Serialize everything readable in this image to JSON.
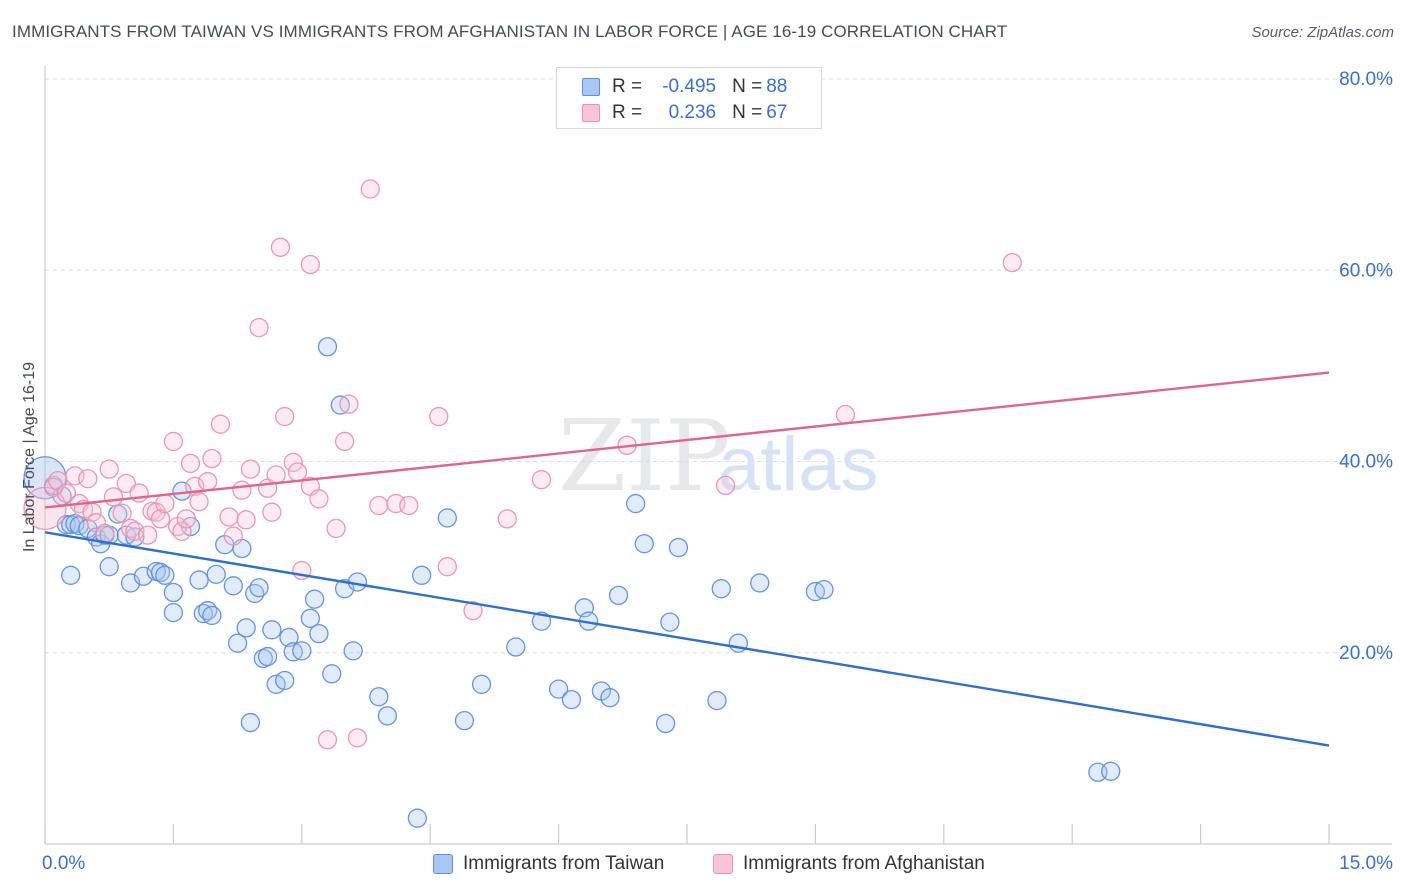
{
  "title": "IMMIGRANTS FROM TAIWAN VS IMMIGRANTS FROM AFGHANISTAN IN LABOR FORCE | AGE 16-19 CORRELATION CHART",
  "source": "Source: ZipAtlas.com",
  "colors": {
    "blue": "#5b8fe0",
    "blue_fill": "#aac6f2",
    "blue_line": "#2f6fd0",
    "pink": "#ee8fb0",
    "pink_fill": "#f7c5d6",
    "pink_line": "#e0648f",
    "grid": "#dcdde2",
    "tick_label": "#3a6fd1"
  },
  "legend": {
    "taiwan": {
      "r_label": "R =",
      "r_value": "-0.495",
      "n_label": "N =",
      "n_value": "88"
    },
    "afghanistan": {
      "r_label": "R =",
      "r_value": "0.236",
      "n_label": "N =",
      "n_value": "67"
    }
  },
  "bottom_legend": {
    "taiwan": "Immigrants from Taiwan",
    "afghanistan": "Immigrants from Afghanistan"
  },
  "watermark": {
    "zip": "ZIP",
    "atlas": "atlas"
  },
  "chart_data": {
    "type": "scatter",
    "title": "IMMIGRANTS FROM TAIWAN VS IMMIGRANTS FROM AFGHANISTAN IN LABOR FORCE | AGE 16-19 CORRELATION CHART",
    "xlabel": "",
    "ylabel": "In Labor Force | Age 16-19",
    "xlim": [
      0,
      15
    ],
    "ylim": [
      0,
      80
    ],
    "x_tick_labels": [
      {
        "value": 0,
        "label": "0.0%"
      },
      {
        "value": 15,
        "label": "15.0%"
      }
    ],
    "y_ticks": [
      {
        "value": 20,
        "label": "20.0%"
      },
      {
        "value": 40,
        "label": "40.0%"
      },
      {
        "value": 60,
        "label": "60.0%"
      },
      {
        "value": 80,
        "label": "80.0%"
      }
    ],
    "series": [
      {
        "name": "Immigrants from Taiwan",
        "color": "blue",
        "trend": {
          "x": [
            0,
            15
          ],
          "y": [
            32.6,
            10.3
          ]
        },
        "points": [
          {
            "x": 0.0,
            "y": 38.3,
            "big": true
          },
          {
            "x": 0.1,
            "y": 37.3
          },
          {
            "x": 0.2,
            "y": 36.4
          },
          {
            "x": 0.25,
            "y": 33.4
          },
          {
            "x": 0.3,
            "y": 33.4
          },
          {
            "x": 0.35,
            "y": 33.5
          },
          {
            "x": 0.4,
            "y": 33.3
          },
          {
            "x": 0.5,
            "y": 33.0
          },
          {
            "x": 0.6,
            "y": 32.1
          },
          {
            "x": 0.65,
            "y": 31.4
          },
          {
            "x": 0.7,
            "y": 32.3
          },
          {
            "x": 0.75,
            "y": 32.3
          },
          {
            "x": 0.3,
            "y": 28.1
          },
          {
            "x": 0.75,
            "y": 29.0
          },
          {
            "x": 0.85,
            "y": 34.5
          },
          {
            "x": 0.95,
            "y": 32.3
          },
          {
            "x": 1.0,
            "y": 27.3
          },
          {
            "x": 1.05,
            "y": 32.1
          },
          {
            "x": 1.15,
            "y": 28.0
          },
          {
            "x": 1.3,
            "y": 28.5
          },
          {
            "x": 1.35,
            "y": 28.4
          },
          {
            "x": 1.4,
            "y": 28.1
          },
          {
            "x": 1.5,
            "y": 26.3
          },
          {
            "x": 1.5,
            "y": 24.2
          },
          {
            "x": 1.6,
            "y": 36.9
          },
          {
            "x": 1.7,
            "y": 33.2
          },
          {
            "x": 1.8,
            "y": 27.6
          },
          {
            "x": 1.85,
            "y": 24.1
          },
          {
            "x": 1.9,
            "y": 24.4
          },
          {
            "x": 1.95,
            "y": 23.9
          },
          {
            "x": 2.0,
            "y": 28.2
          },
          {
            "x": 2.1,
            "y": 31.3
          },
          {
            "x": 2.2,
            "y": 27.0
          },
          {
            "x": 2.25,
            "y": 21.0
          },
          {
            "x": 2.3,
            "y": 30.9
          },
          {
            "x": 2.35,
            "y": 22.6
          },
          {
            "x": 2.4,
            "y": 12.7
          },
          {
            "x": 2.45,
            "y": 26.2
          },
          {
            "x": 2.5,
            "y": 26.8
          },
          {
            "x": 2.55,
            "y": 19.4
          },
          {
            "x": 2.6,
            "y": 19.6
          },
          {
            "x": 2.65,
            "y": 22.4
          },
          {
            "x": 2.7,
            "y": 16.7
          },
          {
            "x": 2.8,
            "y": 17.1
          },
          {
            "x": 2.85,
            "y": 21.6
          },
          {
            "x": 2.9,
            "y": 20.1
          },
          {
            "x": 3.0,
            "y": 20.2
          },
          {
            "x": 3.1,
            "y": 23.6
          },
          {
            "x": 3.15,
            "y": 25.6
          },
          {
            "x": 3.2,
            "y": 22.0
          },
          {
            "x": 3.3,
            "y": 52.0
          },
          {
            "x": 3.35,
            "y": 17.8
          },
          {
            "x": 3.45,
            "y": 45.9
          },
          {
            "x": 3.5,
            "y": 26.7
          },
          {
            "x": 3.6,
            "y": 20.2
          },
          {
            "x": 3.65,
            "y": 27.4
          },
          {
            "x": 3.9,
            "y": 15.4
          },
          {
            "x": 4.0,
            "y": 13.4
          },
          {
            "x": 4.35,
            "y": 2.7
          },
          {
            "x": 4.4,
            "y": 28.1
          },
          {
            "x": 4.7,
            "y": 34.1
          },
          {
            "x": 4.9,
            "y": 12.9
          },
          {
            "x": 5.1,
            "y": 16.7
          },
          {
            "x": 5.5,
            "y": 20.6
          },
          {
            "x": 5.8,
            "y": 23.3
          },
          {
            "x": 6.0,
            "y": 16.2
          },
          {
            "x": 6.15,
            "y": 15.1
          },
          {
            "x": 6.3,
            "y": 24.7
          },
          {
            "x": 6.35,
            "y": 23.3
          },
          {
            "x": 6.5,
            "y": 16.0
          },
          {
            "x": 6.6,
            "y": 15.3
          },
          {
            "x": 6.7,
            "y": 26.0
          },
          {
            "x": 6.9,
            "y": 35.6
          },
          {
            "x": 7.0,
            "y": 31.4
          },
          {
            "x": 7.25,
            "y": 12.6
          },
          {
            "x": 7.3,
            "y": 23.2
          },
          {
            "x": 7.4,
            "y": 31.0
          },
          {
            "x": 7.85,
            "y": 15.0
          },
          {
            "x": 7.9,
            "y": 26.7
          },
          {
            "x": 8.1,
            "y": 21.0
          },
          {
            "x": 8.35,
            "y": 27.3
          },
          {
            "x": 9.0,
            "y": 26.4
          },
          {
            "x": 9.1,
            "y": 26.6
          },
          {
            "x": 12.3,
            "y": 7.5
          },
          {
            "x": 12.45,
            "y": 7.6
          }
        ]
      },
      {
        "name": "Immigrants from Afghanistan",
        "color": "pink",
        "trend": {
          "x": [
            0,
            15
          ],
          "y": [
            35.2,
            49.3
          ]
        },
        "points": [
          {
            "x": 0.0,
            "y": 35.1,
            "big": true
          },
          {
            "x": 0.1,
            "y": 37.5
          },
          {
            "x": 0.15,
            "y": 38.0
          },
          {
            "x": 0.25,
            "y": 36.7
          },
          {
            "x": 0.35,
            "y": 38.5
          },
          {
            "x": 0.4,
            "y": 35.6
          },
          {
            "x": 0.45,
            "y": 35.0
          },
          {
            "x": 0.5,
            "y": 38.2
          },
          {
            "x": 0.55,
            "y": 34.7
          },
          {
            "x": 0.6,
            "y": 33.6
          },
          {
            "x": 0.7,
            "y": 32.5
          },
          {
            "x": 0.75,
            "y": 39.2
          },
          {
            "x": 0.8,
            "y": 36.3
          },
          {
            "x": 0.9,
            "y": 34.6
          },
          {
            "x": 0.95,
            "y": 37.7
          },
          {
            "x": 1.0,
            "y": 33.0
          },
          {
            "x": 1.05,
            "y": 32.7
          },
          {
            "x": 1.1,
            "y": 36.7
          },
          {
            "x": 1.2,
            "y": 32.3
          },
          {
            "x": 1.25,
            "y": 34.8
          },
          {
            "x": 1.3,
            "y": 34.7
          },
          {
            "x": 1.35,
            "y": 34.0
          },
          {
            "x": 1.4,
            "y": 35.6
          },
          {
            "x": 1.5,
            "y": 42.1
          },
          {
            "x": 1.55,
            "y": 33.2
          },
          {
            "x": 1.6,
            "y": 32.7
          },
          {
            "x": 1.65,
            "y": 34.0
          },
          {
            "x": 1.7,
            "y": 39.8
          },
          {
            "x": 1.75,
            "y": 37.4
          },
          {
            "x": 1.8,
            "y": 35.8
          },
          {
            "x": 1.9,
            "y": 37.9
          },
          {
            "x": 1.95,
            "y": 40.3
          },
          {
            "x": 2.05,
            "y": 43.9
          },
          {
            "x": 2.15,
            "y": 34.2
          },
          {
            "x": 2.2,
            "y": 32.2
          },
          {
            "x": 2.3,
            "y": 37.0
          },
          {
            "x": 2.35,
            "y": 33.9
          },
          {
            "x": 2.4,
            "y": 39.2
          },
          {
            "x": 2.5,
            "y": 54.0
          },
          {
            "x": 2.6,
            "y": 37.2
          },
          {
            "x": 2.65,
            "y": 34.7
          },
          {
            "x": 2.7,
            "y": 38.6
          },
          {
            "x": 2.75,
            "y": 62.4
          },
          {
            "x": 2.8,
            "y": 44.7
          },
          {
            "x": 2.9,
            "y": 39.9
          },
          {
            "x": 2.95,
            "y": 38.9
          },
          {
            "x": 3.0,
            "y": 28.6
          },
          {
            "x": 3.1,
            "y": 37.4
          },
          {
            "x": 3.1,
            "y": 60.6
          },
          {
            "x": 3.2,
            "y": 36.1
          },
          {
            "x": 3.3,
            "y": 10.9
          },
          {
            "x": 3.4,
            "y": 33.0
          },
          {
            "x": 3.5,
            "y": 42.1
          },
          {
            "x": 3.55,
            "y": 46.0
          },
          {
            "x": 3.65,
            "y": 11.1
          },
          {
            "x": 3.8,
            "y": 68.5
          },
          {
            "x": 3.9,
            "y": 35.4
          },
          {
            "x": 4.1,
            "y": 35.6
          },
          {
            "x": 4.25,
            "y": 35.4
          },
          {
            "x": 4.6,
            "y": 44.7
          },
          {
            "x": 4.7,
            "y": 29.0
          },
          {
            "x": 5.0,
            "y": 24.4
          },
          {
            "x": 5.4,
            "y": 34.0
          },
          {
            "x": 5.8,
            "y": 38.1
          },
          {
            "x": 6.8,
            "y": 41.7
          },
          {
            "x": 7.95,
            "y": 37.5
          },
          {
            "x": 9.35,
            "y": 44.9
          },
          {
            "x": 11.3,
            "y": 60.8
          }
        ]
      }
    ]
  }
}
